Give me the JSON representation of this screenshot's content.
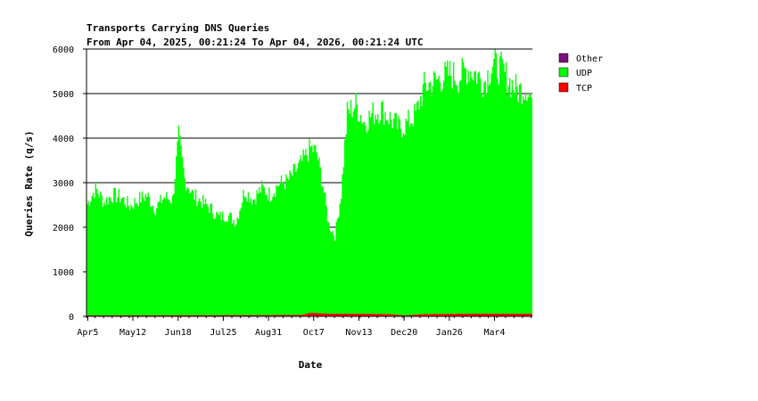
{
  "chart_data": {
    "type": "area",
    "title": "Transports Carrying DNS Queries",
    "subtitle": "From Apr 04, 2025, 00:21:24 To Apr 04, 2026, 00:21:24 UTC",
    "xlabel": "Date",
    "ylabel": "Queries Rate (q/s)",
    "ylim": [
      0,
      6000
    ],
    "yticks": [
      0,
      1000,
      2000,
      3000,
      4000,
      5000,
      6000
    ],
    "xlim": [
      "2025-04-04",
      "2026-04-04"
    ],
    "xticks": [
      {
        "label": "Apr5",
        "date": "2025-04-05"
      },
      {
        "label": "May12",
        "date": "2025-05-12"
      },
      {
        "label": "Jun18",
        "date": "2025-06-18"
      },
      {
        "label": "Jul25",
        "date": "2025-07-25"
      },
      {
        "label": "Aug31",
        "date": "2025-08-31"
      },
      {
        "label": "Oct7",
        "date": "2025-10-07"
      },
      {
        "label": "Nov13",
        "date": "2025-11-13"
      },
      {
        "label": "Dec20",
        "date": "2025-12-20"
      },
      {
        "label": "Jan26",
        "date": "2026-01-26"
      },
      {
        "label": "Mar4",
        "date": "2026-03-04"
      }
    ],
    "grid": "horizontal",
    "legend": "top-right",
    "stacked": true,
    "series": [
      {
        "name": "Other",
        "color": "#7b1080",
        "values": []
      },
      {
        "name": "UDP",
        "color": "#00ff00",
        "x": [
          "2025-04-04",
          "2025-04-11",
          "2025-04-18",
          "2025-04-25",
          "2025-05-02",
          "2025-05-09",
          "2025-05-16",
          "2025-05-23",
          "2025-05-30",
          "2025-06-06",
          "2025-06-13",
          "2025-06-18",
          "2025-06-23",
          "2025-06-30",
          "2025-07-07",
          "2025-07-14",
          "2025-07-21",
          "2025-07-28",
          "2025-08-04",
          "2025-08-11",
          "2025-08-18",
          "2025-08-25",
          "2025-09-01",
          "2025-09-08",
          "2025-09-15",
          "2025-09-22",
          "2025-09-29",
          "2025-10-04",
          "2025-10-09",
          "2025-10-14",
          "2025-10-19",
          "2025-10-24",
          "2025-10-29",
          "2025-11-03",
          "2025-11-10",
          "2025-11-17",
          "2025-11-24",
          "2025-12-01",
          "2025-12-08",
          "2025-12-15",
          "2025-12-22",
          "2025-12-29",
          "2026-01-05",
          "2026-01-12",
          "2026-01-19",
          "2026-01-26",
          "2026-02-02",
          "2026-02-09",
          "2026-02-16",
          "2026-02-23",
          "2026-03-02",
          "2026-03-09",
          "2026-03-16",
          "2026-03-23",
          "2026-03-30",
          "2026-04-04"
        ],
        "values": [
          2500,
          2850,
          2550,
          2700,
          2650,
          2450,
          2600,
          2700,
          2400,
          2650,
          2600,
          4000,
          3050,
          2700,
          2550,
          2400,
          2200,
          2250,
          2100,
          2800,
          2600,
          2850,
          2700,
          2950,
          3000,
          3250,
          3500,
          3700,
          3600,
          2900,
          2000,
          1750,
          2700,
          4500,
          4700,
          4300,
          4500,
          4600,
          4400,
          4200,
          4300,
          4500,
          5100,
          5200,
          5300,
          5400,
          5300,
          5500,
          5400,
          5200,
          5600,
          5500,
          5200,
          5000,
          5100,
          4750
        ]
      },
      {
        "name": "TCP",
        "color": "#ff0000",
        "x": [
          "2025-04-04",
          "2025-09-26",
          "2025-10-04",
          "2025-10-19",
          "2025-11-03",
          "2025-12-08",
          "2025-12-20",
          "2026-01-05",
          "2026-02-16",
          "2026-04-04"
        ],
        "values": [
          20,
          30,
          80,
          60,
          60,
          50,
          20,
          50,
          60,
          60
        ]
      }
    ]
  }
}
